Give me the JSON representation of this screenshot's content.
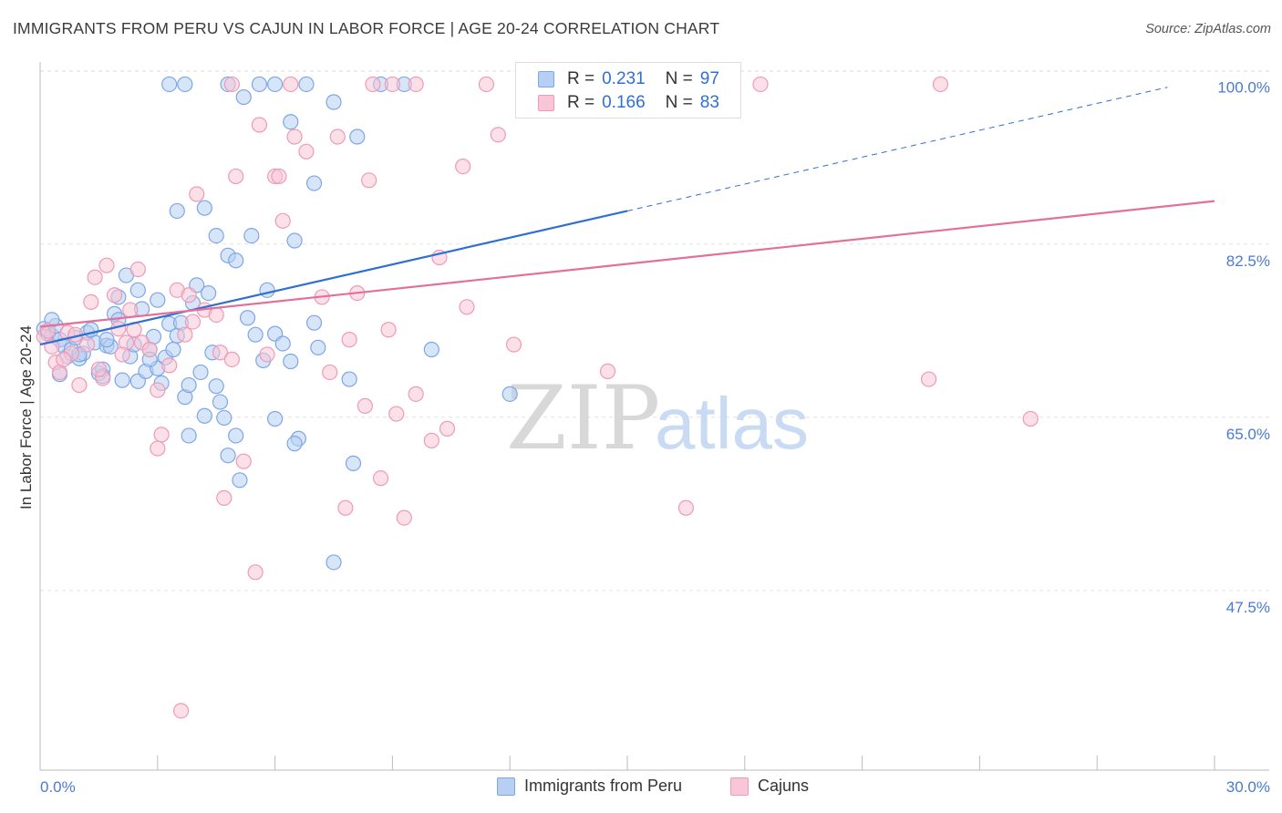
{
  "header": {
    "title": "IMMIGRANTS FROM PERU VS CAJUN IN LABOR FORCE | AGE 20-24 CORRELATION CHART",
    "source": "Source: ZipAtlas.com"
  },
  "watermark": {
    "zip": "ZIP",
    "atlas": "atlas"
  },
  "legend": {
    "series": [
      {
        "r_label": "R =",
        "r_value": "0.231",
        "n_label": "N =",
        "n_value": "97"
      },
      {
        "r_label": "R =",
        "r_value": "0.166",
        "n_label": "N =",
        "n_value": "83"
      }
    ]
  },
  "bottom_legend": {
    "peru": "Immigrants from Peru",
    "cajuns": "Cajuns"
  },
  "colors": {
    "peru_fill": "#b7cff3",
    "peru_stroke": "#7ea6e6",
    "peru_line": "#2f6fd4",
    "cajun_fill": "#f8c6d6",
    "cajun_stroke": "#ee9ab7",
    "cajun_line": "#e2709a",
    "tick_text": "#4a7bd0",
    "grid": "#e2e2e2"
  },
  "chart_data": {
    "type": "scatter",
    "title": "IMMIGRANTS FROM PERU VS CAJUN IN LABOR FORCE | AGE 20-24 CORRELATION CHART",
    "xlabel": "",
    "ylabel": "In Labor Force | Age 20-24",
    "xlim": [
      0,
      30
    ],
    "ylim": [
      31,
      102
    ],
    "x_tick_labels": [
      "0.0%",
      "30.0%"
    ],
    "y_tick_values": [
      100.0,
      82.5,
      65.0,
      47.5
    ],
    "y_tick_labels": [
      "100.0%",
      "82.5%",
      "65.0%",
      "47.5%"
    ],
    "legend_position": "top-center",
    "series": [
      {
        "name": "Immigrants from Peru",
        "r": 0.231,
        "n": 97,
        "trend": {
          "x0": 0,
          "y0": 74.0,
          "x1": 15.0,
          "y1": 87.5,
          "dashed_to_x": 28.8,
          "dashed_to_y": 100.0
        },
        "points": [
          [
            0.1,
            75.6
          ],
          [
            0.2,
            75.1
          ],
          [
            0.3,
            74.9
          ],
          [
            0.4,
            75.9
          ],
          [
            0.5,
            74.5
          ],
          [
            0.6,
            73.9
          ],
          [
            0.7,
            72.8
          ],
          [
            0.8,
            73.5
          ],
          [
            0.9,
            74.7
          ],
          [
            1.0,
            72.6
          ],
          [
            1.1,
            73.1
          ],
          [
            1.2,
            75.2
          ],
          [
            1.4,
            74.2
          ],
          [
            1.5,
            71.1
          ],
          [
            1.6,
            71.5
          ],
          [
            1.7,
            73.9
          ],
          [
            1.8,
            73.8
          ],
          [
            1.9,
            77.1
          ],
          [
            2.0,
            78.8
          ],
          [
            2.1,
            70.4
          ],
          [
            2.3,
            72.8
          ],
          [
            2.4,
            74.0
          ],
          [
            2.5,
            70.3
          ],
          [
            2.6,
            77.6
          ],
          [
            2.7,
            71.3
          ],
          [
            2.8,
            73.5
          ],
          [
            2.9,
            74.8
          ],
          [
            3.0,
            71.6
          ],
          [
            3.1,
            70.1
          ],
          [
            3.2,
            72.7
          ],
          [
            3.3,
            76.1
          ],
          [
            3.4,
            73.5
          ],
          [
            3.5,
            74.9
          ],
          [
            3.6,
            76.2
          ],
          [
            3.7,
            68.7
          ],
          [
            3.8,
            69.9
          ],
          [
            3.9,
            78.2
          ],
          [
            4.0,
            80.0
          ],
          [
            4.1,
            71.2
          ],
          [
            4.2,
            66.8
          ],
          [
            4.3,
            79.2
          ],
          [
            4.4,
            73.2
          ],
          [
            4.5,
            69.8
          ],
          [
            4.6,
            68.2
          ],
          [
            4.7,
            66.6
          ],
          [
            4.8,
            62.8
          ],
          [
            5.0,
            64.8
          ],
          [
            5.1,
            60.3
          ],
          [
            5.3,
            76.7
          ],
          [
            5.5,
            75.0
          ],
          [
            5.7,
            72.4
          ],
          [
            5.8,
            79.5
          ],
          [
            6.0,
            75.1
          ],
          [
            6.2,
            74.1
          ],
          [
            6.4,
            72.3
          ],
          [
            6.6,
            64.5
          ],
          [
            3.5,
            87.5
          ],
          [
            4.2,
            87.8
          ],
          [
            4.5,
            85.0
          ],
          [
            4.8,
            83.0
          ],
          [
            5.4,
            85.0
          ],
          [
            6.5,
            84.5
          ],
          [
            5.0,
            82.5
          ],
          [
            6.4,
            96.5
          ],
          [
            7.0,
            90.3
          ],
          [
            7.5,
            98.5
          ],
          [
            8.1,
            95.0
          ],
          [
            3.3,
            100.3
          ],
          [
            3.7,
            100.3
          ],
          [
            4.8,
            100.3
          ],
          [
            5.6,
            100.3
          ],
          [
            6.0,
            100.3
          ],
          [
            6.8,
            100.3
          ],
          [
            8.7,
            100.3
          ],
          [
            9.3,
            100.3
          ],
          [
            5.2,
            99.0
          ],
          [
            7.0,
            76.2
          ],
          [
            7.1,
            73.7
          ],
          [
            7.9,
            70.5
          ],
          [
            8.0,
            62.0
          ],
          [
            10.0,
            73.5
          ],
          [
            12.0,
            69.0
          ],
          [
            7.5,
            52.0
          ],
          [
            6.0,
            66.5
          ],
          [
            6.5,
            64.0
          ],
          [
            3.8,
            64.8
          ],
          [
            2.2,
            81.0
          ],
          [
            2.5,
            79.5
          ],
          [
            3.0,
            78.5
          ],
          [
            2.0,
            76.5
          ],
          [
            1.3,
            75.5
          ],
          [
            1.7,
            74.5
          ],
          [
            0.5,
            71.0
          ],
          [
            1.0,
            73.0
          ],
          [
            0.3,
            76.5
          ],
          [
            2.8,
            72.5
          ],
          [
            1.6,
            70.8
          ]
        ]
      },
      {
        "name": "Cajuns",
        "r": 0.166,
        "n": 83,
        "trend": {
          "x0": 0,
          "y0": 75.8,
          "x1": 30.0,
          "y1": 88.5
        },
        "points": [
          [
            0.1,
            74.8
          ],
          [
            0.2,
            75.4
          ],
          [
            0.3,
            73.8
          ],
          [
            0.4,
            72.2
          ],
          [
            0.5,
            71.2
          ],
          [
            0.7,
            75.2
          ],
          [
            0.8,
            73.1
          ],
          [
            1.0,
            69.9
          ],
          [
            1.2,
            74.0
          ],
          [
            1.3,
            78.3
          ],
          [
            1.4,
            80.8
          ],
          [
            1.6,
            70.6
          ],
          [
            1.7,
            82.0
          ],
          [
            1.9,
            79.0
          ],
          [
            2.0,
            75.6
          ],
          [
            2.2,
            74.2
          ],
          [
            2.3,
            77.5
          ],
          [
            2.5,
            81.6
          ],
          [
            2.6,
            74.2
          ],
          [
            2.8,
            73.5
          ],
          [
            3.0,
            69.4
          ],
          [
            3.1,
            64.9
          ],
          [
            3.3,
            71.9
          ],
          [
            3.5,
            79.5
          ],
          [
            3.7,
            75.0
          ],
          [
            3.9,
            76.3
          ],
          [
            4.0,
            89.2
          ],
          [
            4.2,
            77.5
          ],
          [
            4.5,
            77.0
          ],
          [
            4.6,
            73.2
          ],
          [
            4.9,
            72.5
          ],
          [
            5.2,
            62.2
          ],
          [
            5.5,
            51.0
          ],
          [
            5.6,
            96.2
          ],
          [
            5.8,
            73.0
          ],
          [
            6.0,
            91.0
          ],
          [
            6.2,
            86.5
          ],
          [
            6.5,
            95.0
          ],
          [
            6.8,
            93.5
          ],
          [
            7.2,
            78.8
          ],
          [
            7.4,
            71.2
          ],
          [
            7.6,
            95.0
          ],
          [
            7.8,
            57.5
          ],
          [
            7.9,
            74.5
          ],
          [
            8.1,
            79.2
          ],
          [
            8.3,
            67.8
          ],
          [
            8.4,
            90.6
          ],
          [
            8.7,
            60.5
          ],
          [
            8.9,
            75.5
          ],
          [
            9.1,
            67.0
          ],
          [
            9.3,
            56.5
          ],
          [
            9.6,
            100.3
          ],
          [
            10.0,
            64.3
          ],
          [
            10.2,
            82.8
          ],
          [
            10.4,
            65.5
          ],
          [
            10.9,
            77.8
          ],
          [
            11.4,
            100.3
          ],
          [
            11.7,
            95.2
          ],
          [
            12.1,
            74.0
          ],
          [
            14.5,
            71.3
          ],
          [
            16.5,
            57.5
          ],
          [
            22.7,
            70.5
          ],
          [
            25.3,
            66.5
          ],
          [
            4.9,
            100.3
          ],
          [
            6.4,
            100.3
          ],
          [
            8.5,
            100.3
          ],
          [
            9.0,
            100.3
          ],
          [
            12.5,
            100.3
          ],
          [
            18.4,
            100.3
          ],
          [
            23.0,
            100.3
          ],
          [
            10.8,
            92.0
          ],
          [
            4.7,
            58.5
          ],
          [
            3.6,
            37.0
          ],
          [
            3.0,
            63.5
          ],
          [
            2.1,
            73.0
          ],
          [
            1.5,
            71.5
          ],
          [
            0.6,
            72.5
          ],
          [
            0.9,
            75.0
          ],
          [
            2.4,
            75.5
          ],
          [
            5.0,
            91.0
          ],
          [
            6.1,
            91.0
          ],
          [
            3.8,
            79.0
          ],
          [
            9.6,
            69.0
          ]
        ]
      }
    ]
  }
}
